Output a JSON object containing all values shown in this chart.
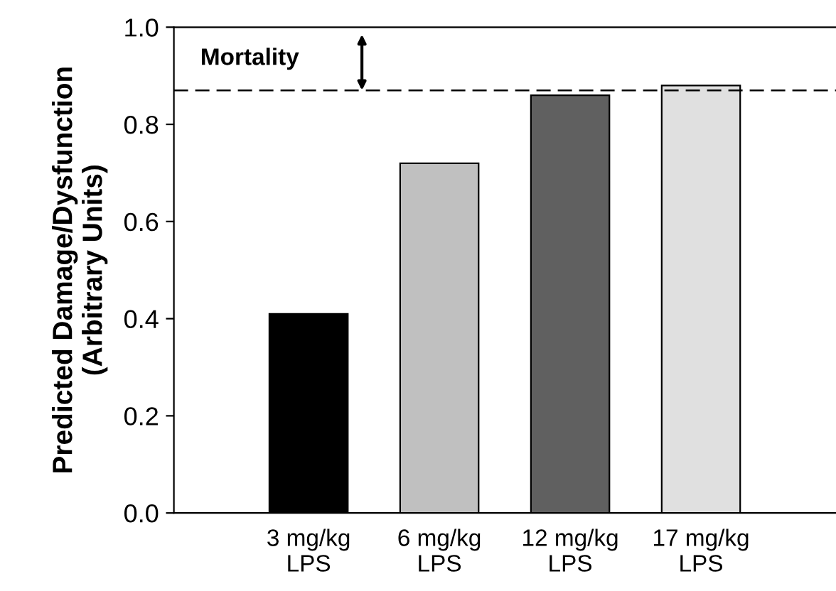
{
  "chart_data": {
    "type": "bar",
    "ylabel": "Predicted Damage/Dysfunction\n(Arbitrary Units)",
    "categories": [
      "3 mg/kg\nLPS",
      "6 mg/kg\nLPS",
      "12 mg/kg\nLPS",
      "17 mg/kg\nLPS"
    ],
    "values": [
      0.41,
      0.72,
      0.86,
      0.88
    ],
    "colors": [
      "#000000",
      "#c0c0c0",
      "#606060",
      "#e0e0e0"
    ],
    "ylim": [
      0,
      1.0
    ],
    "yticks": [
      {
        "value": 0,
        "label": "0.0"
      },
      {
        "value": 0.2,
        "label": "0.2"
      },
      {
        "value": 0.4,
        "label": "0.4"
      },
      {
        "value": 0.6,
        "label": "0.6"
      },
      {
        "value": 0.8,
        "label": "0.8"
      },
      {
        "value": 1.0,
        "label": "1.0"
      }
    ],
    "ref_lines": [
      {
        "axis": "y",
        "value": 0.87,
        "line_style": "dashed",
        "color": "#000000"
      }
    ],
    "annotations": [
      {
        "text": "Mortality",
        "y": 0.87
      }
    ],
    "grid": false,
    "legend": false
  }
}
